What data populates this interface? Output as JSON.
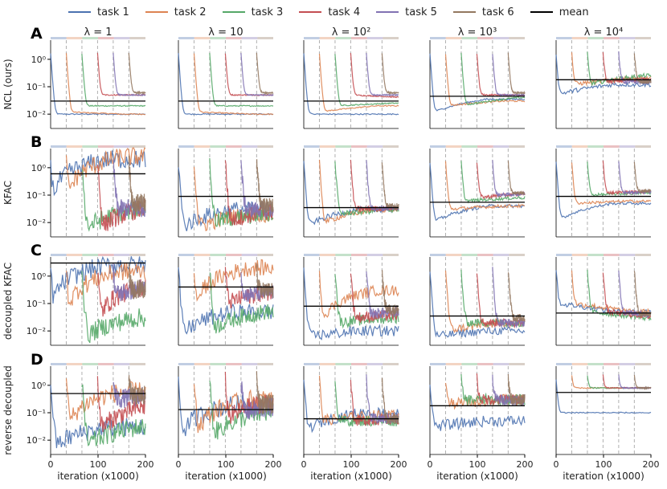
{
  "legend": [
    {
      "label": "task 1",
      "color": "#4c72b0"
    },
    {
      "label": "task 2",
      "color": "#dd8452"
    },
    {
      "label": "task 3",
      "color": "#55a868"
    },
    {
      "label": "task 4",
      "color": "#c44e52"
    },
    {
      "label": "task 5",
      "color": "#8172b3"
    },
    {
      "label": "task 6",
      "color": "#937860"
    },
    {
      "label": "mean",
      "color": "#000000"
    }
  ],
  "columns": [
    "λ = 1",
    "λ = 10",
    "λ = 10²",
    "λ = 10³",
    "λ = 10⁴"
  ],
  "rows": [
    {
      "letter": "A",
      "ylabel": "NCL (ours)",
      "show_xticks": false
    },
    {
      "letter": "B",
      "ylabel": "KFAC",
      "show_xticks": false
    },
    {
      "letter": "C",
      "ylabel": "decoupled KFAC",
      "show_xticks": false
    },
    {
      "letter": "D",
      "ylabel": "reverse decoupled",
      "show_xticks": true
    }
  ],
  "chart_data": {
    "type": "line",
    "xlabel": "iteration (x1000)",
    "xlim": [
      0,
      200
    ],
    "xticks": [
      "0",
      "100",
      "200"
    ],
    "yscale": "log",
    "ylim": [
      0.003,
      5
    ],
    "yticks": [
      "10⁰",
      "10⁻¹",
      "10⁻²"
    ],
    "task_boundaries": [
      33,
      66,
      99,
      132,
      165
    ],
    "series": [
      "task 1",
      "task 2",
      "task 3",
      "task 4",
      "task 5",
      "task 6",
      "mean"
    ],
    "panels": [
      [
        {
          "mean": 0.03,
          "tasks": [
            [
              0.01,
              0.01
            ],
            [
              0.012,
              0.01
            ],
            [
              0.02,
              0.02
            ],
            [
              0.05,
              0.05
            ],
            [
              0.05,
              0.05
            ],
            [
              0.06,
              0.06
            ]
          ],
          "noise": 0.02
        },
        {
          "mean": 0.03,
          "tasks": [
            [
              0.01,
              0.01
            ],
            [
              0.012,
              0.01
            ],
            [
              0.02,
              0.02
            ],
            [
              0.05,
              0.05
            ],
            [
              0.05,
              0.05
            ],
            [
              0.06,
              0.06
            ]
          ],
          "noise": 0.02
        },
        {
          "mean": 0.03,
          "tasks": [
            [
              0.01,
              0.01
            ],
            [
              0.012,
              0.02
            ],
            [
              0.02,
              0.025
            ],
            [
              0.05,
              0.04
            ],
            [
              0.05,
              0.05
            ],
            [
              0.06,
              0.06
            ]
          ],
          "noise": 0.02
        },
        {
          "mean": 0.045,
          "tasks": [
            [
              0.01,
              0.035
            ],
            [
              0.02,
              0.03
            ],
            [
              0.02,
              0.04
            ],
            [
              0.05,
              0.05
            ],
            [
              0.05,
              0.05
            ],
            [
              0.06,
              0.06
            ]
          ],
          "noise": 0.03
        },
        {
          "mean": 0.18,
          "tasks": [
            [
              0.05,
              0.12
            ],
            [
              0.12,
              0.2
            ],
            [
              0.12,
              0.25
            ],
            [
              0.15,
              0.2
            ],
            [
              0.15,
              0.15
            ],
            [
              0.15,
              0.15
            ]
          ],
          "noise": 0.08
        }
      ],
      [
        {
          "mean": 0.6,
          "tasks": [
            [
              0.004,
              2.0
            ],
            [
              0.004,
              2.5
            ],
            [
              0.004,
              0.03
            ],
            [
              0.004,
              0.04
            ],
            [
              0.03,
              0.04
            ],
            [
              0.05,
              0.05
            ]
          ],
          "noise": 0.35
        },
        {
          "mean": 0.09,
          "tasks": [
            [
              0.005,
              0.03
            ],
            [
              0.006,
              0.02
            ],
            [
              0.01,
              0.02
            ],
            [
              0.01,
              0.03
            ],
            [
              0.03,
              0.03
            ],
            [
              0.04,
              0.04
            ]
          ],
          "noise": 0.3
        },
        {
          "mean": 0.035,
          "tasks": [
            [
              0.006,
              0.03
            ],
            [
              0.008,
              0.03
            ],
            [
              0.02,
              0.03
            ],
            [
              0.03,
              0.035
            ],
            [
              0.03,
              0.04
            ],
            [
              0.04,
              0.04
            ]
          ],
          "noise": 0.1
        },
        {
          "mean": 0.055,
          "tasks": [
            [
              0.008,
              0.04
            ],
            [
              0.03,
              0.04
            ],
            [
              0.06,
              0.08
            ],
            [
              0.08,
              0.12
            ],
            [
              0.1,
              0.12
            ],
            [
              0.12,
              0.12
            ]
          ],
          "noise": 0.06
        },
        {
          "mean": 0.09,
          "tasks": [
            [
              0.01,
              0.05
            ],
            [
              0.05,
              0.06
            ],
            [
              0.1,
              0.12
            ],
            [
              0.12,
              0.14
            ],
            [
              0.12,
              0.14
            ],
            [
              0.14,
              0.14
            ]
          ],
          "noise": 0.05
        }
      ],
      [
        {
          "mean": 3.0,
          "tasks": [
            [
              0.004,
              2.5
            ],
            [
              0.004,
              1.5
            ],
            [
              0.004,
              0.03
            ],
            [
              0.01,
              0.5
            ],
            [
              0.2,
              0.5
            ],
            [
              0.3,
              0.5
            ]
          ],
          "noise": 0.35
        },
        {
          "mean": 0.4,
          "tasks": [
            [
              0.004,
              0.05
            ],
            [
              0.004,
              2.0
            ],
            [
              0.01,
              0.05
            ],
            [
              0.1,
              0.3
            ],
            [
              0.2,
              0.3
            ],
            [
              0.3,
              0.3
            ]
          ],
          "noise": 0.3
        },
        {
          "mean": 0.08,
          "tasks": [
            [
              0.006,
              0.01
            ],
            [
              0.01,
              0.3
            ],
            [
              0.02,
              0.03
            ],
            [
              0.03,
              0.04
            ],
            [
              0.04,
              0.06
            ],
            [
              0.06,
              0.06
            ]
          ],
          "noise": 0.2
        },
        {
          "mean": 0.035,
          "tasks": [
            [
              0.006,
              0.01
            ],
            [
              0.01,
              0.02
            ],
            [
              0.02,
              0.02
            ],
            [
              0.02,
              0.02
            ],
            [
              0.02,
              0.02
            ],
            [
              0.03,
              0.03
            ]
          ],
          "noise": 0.15
        },
        {
          "mean": 0.045,
          "tasks": [
            [
              0.1,
              0.05
            ],
            [
              0.1,
              0.05
            ],
            [
              0.05,
              0.03
            ],
            [
              0.05,
              0.03
            ],
            [
              0.05,
              0.03
            ],
            [
              0.04,
              0.04
            ]
          ],
          "noise": 0.1
        }
      ],
      [
        {
          "mean": 0.5,
          "tasks": [
            [
              0.004,
              0.03
            ],
            [
              0.004,
              0.6
            ],
            [
              0.004,
              0.03
            ],
            [
              0.01,
              0.2
            ],
            [
              0.3,
              0.5
            ],
            [
              0.4,
              0.5
            ]
          ],
          "noise": 0.35
        },
        {
          "mean": 0.13,
          "tasks": [
            [
              0.004,
              0.2
            ],
            [
              0.005,
              0.3
            ],
            [
              0.01,
              0.1
            ],
            [
              0.05,
              0.3
            ],
            [
              0.1,
              0.2
            ],
            [
              0.2,
              0.2
            ]
          ],
          "noise": 0.35
        },
        {
          "mean": 0.06,
          "tasks": [
            [
              0.02,
              0.1
            ],
            [
              0.05,
              0.08
            ],
            [
              0.05,
              0.05
            ],
            [
              0.05,
              0.06
            ],
            [
              0.06,
              0.06
            ],
            [
              0.06,
              0.06
            ]
          ],
          "noise": 0.2
        },
        {
          "mean": 0.18,
          "tasks": [
            [
              0.03,
              0.05
            ],
            [
              0.2,
              0.3
            ],
            [
              0.3,
              0.3
            ],
            [
              0.3,
              0.3
            ],
            [
              0.3,
              0.3
            ],
            [
              0.3,
              0.3
            ]
          ],
          "noise": 0.2
        },
        {
          "mean": 0.55,
          "tasks": [
            [
              0.1,
              0.1
            ],
            [
              0.8,
              0.8
            ],
            [
              0.8,
              0.8
            ],
            [
              0.8,
              0.8
            ],
            [
              0.8,
              0.8
            ],
            [
              0.8,
              0.8
            ]
          ],
          "noise": 0.02
        }
      ]
    ]
  }
}
